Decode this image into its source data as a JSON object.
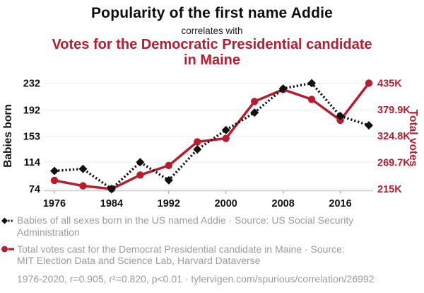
{
  "header": {
    "title": "Popularity of the first name Addie",
    "connector": "correlates with",
    "subtitle": "Votes for the Democratic Presidential candidate in Maine"
  },
  "colors": {
    "accent_red": "#b81c2f",
    "series_black": "#111111",
    "text_gray": "#9b9b9b",
    "gridline": "#ececec",
    "axis_line": "#c9c9c9",
    "tick_mark": "#aaaaaa"
  },
  "chart_data": {
    "type": "line",
    "x": [
      1976,
      1980,
      1984,
      1988,
      1992,
      1996,
      2000,
      2004,
      2008,
      2012,
      2016,
      2020
    ],
    "x_ticks": [
      1976,
      1984,
      1992,
      2000,
      2008,
      2016
    ],
    "series": [
      {
        "name": "votes-democrat-maine",
        "axis": "right",
        "line_style": "solid",
        "marker": "circle",
        "color": "#b81c2f",
        "values": [
          232279,
          220974,
          214515,
          243569,
          263420,
          312788,
          319951,
          396842,
          421923,
          401306,
          357735,
          435072
        ]
      },
      {
        "name": "babies-named-addie",
        "axis": "left",
        "line_style": "dotted",
        "marker": "diamond",
        "color": "#111111",
        "values": [
          101,
          104,
          74,
          114,
          87,
          133,
          162,
          188,
          224,
          232,
          183,
          169
        ]
      }
    ],
    "left_axis": {
      "label": "Babies born",
      "min": 74,
      "max": 232,
      "ticks": [
        {
          "v": 74,
          "label": "74"
        },
        {
          "v": 114,
          "label": "114"
        },
        {
          "v": 153,
          "label": "153"
        },
        {
          "v": 192,
          "label": "192"
        },
        {
          "v": 232,
          "label": "232"
        }
      ]
    },
    "right_axis": {
      "label": "Total votes",
      "min": 214515,
      "max": 435072,
      "ticks": [
        {
          "v": 214515,
          "label": "215K"
        },
        {
          "v": 269654,
          "label": "269.7K"
        },
        {
          "v": 324794,
          "label": "324.8K"
        },
        {
          "v": 379933,
          "label": "379.9K"
        },
        {
          "v": 435072,
          "label": "435K"
        }
      ]
    },
    "grid": "horizontal-only",
    "legend_position": "bottom-left"
  },
  "legend": {
    "items": [
      {
        "icon": "diamond-dotted-line-icon",
        "lines": [
          "Babies of all sexes born in the US named Addie · Source: US Social Security",
          "Administration"
        ]
      },
      {
        "icon": "circle-solid-line-icon",
        "lines": [
          "Total votes cast for the Democrat Presidential candidate in Maine · Source:",
          "MIT Election Data and Science Lab, Harvard Dataverse"
        ]
      }
    ],
    "footer": "1976-2020, r=0.905, r²=0.820, p<0.01 · tylervigen.com/spurious/correlation/26992"
  }
}
